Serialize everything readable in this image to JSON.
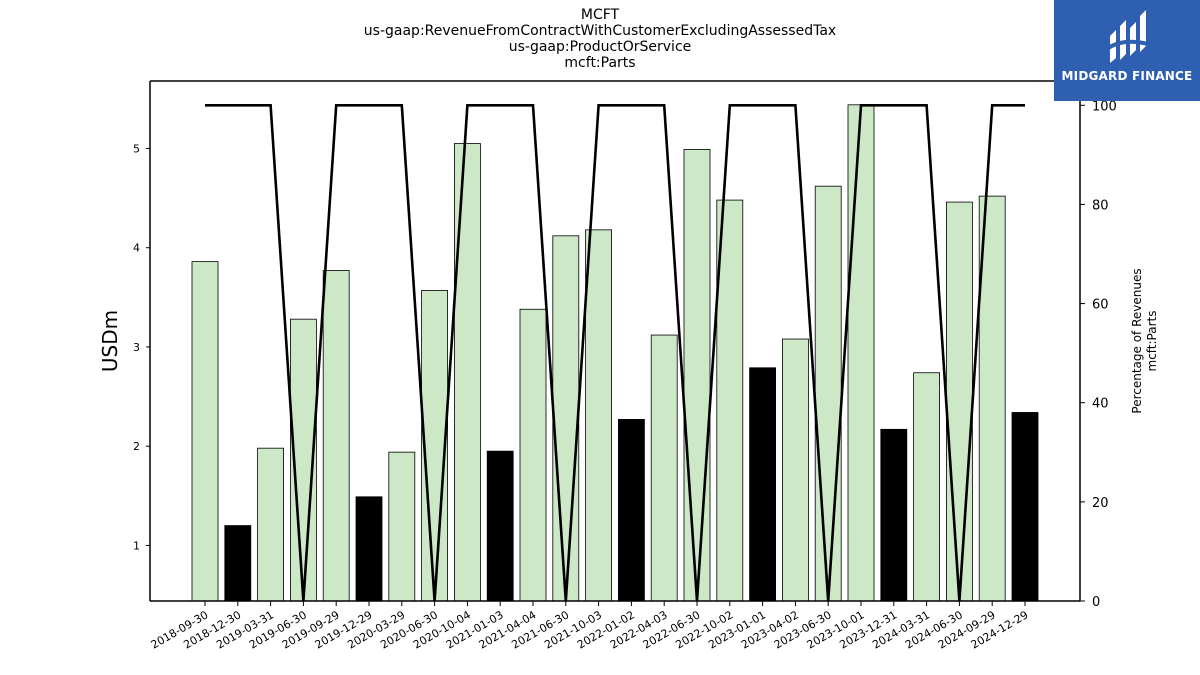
{
  "header": {
    "title_lines": [
      "MCFT",
      "us-gaap:RevenueFromContractWithCustomerExcludingAssessedTax",
      "us-gaap:ProductOrService",
      "mcft:Parts"
    ]
  },
  "logo": {
    "text": "MIDGARD FINANCE",
    "color": "#2f5fb0"
  },
  "chart_data": {
    "type": "bar",
    "title": [
      "MCFT",
      "us-gaap:RevenueFromContractWithCustomerExcludingAssessedTax",
      "us-gaap:ProductOrService",
      "mcft:Parts"
    ],
    "categories": [
      "2018-09-30",
      "2018-12-30",
      "2019-03-31",
      "2019-06-30",
      "2019-09-29",
      "2019-12-29",
      "2020-03-29",
      "2020-06-30",
      "2020-10-04",
      "2021-01-03",
      "2021-04-04",
      "2021-06-30",
      "2021-10-03",
      "2022-01-02",
      "2022-04-03",
      "2022-06-30",
      "2022-10-02",
      "2023-01-01",
      "2023-04-02",
      "2023-06-30",
      "2023-10-01",
      "2023-12-31",
      "2024-03-31",
      "2024-06-30",
      "2024-09-29",
      "2024-12-29"
    ],
    "series": [
      {
        "axis": "left",
        "values": [
          3.86,
          1.2,
          1.98,
          3.28,
          3.77,
          1.49,
          1.94,
          3.57,
          5.05,
          1.95,
          3.38,
          4.12,
          4.18,
          2.27,
          3.12,
          4.99,
          4.48,
          2.79,
          3.08,
          4.62,
          5.44,
          2.17,
          2.74,
          4.46,
          4.52,
          2.34
        ],
        "colors": [
          "#cde8c6",
          "#000000",
          "#cde8c6",
          "#cde8c6",
          "#cde8c6",
          "#000000",
          "#cde8c6",
          "#cde8c6",
          "#cde8c6",
          "#000000",
          "#cde8c6",
          "#cde8c6",
          "#cde8c6",
          "#000000",
          "#cde8c6",
          "#cde8c6",
          "#cde8c6",
          "#000000",
          "#cde8c6",
          "#cde8c6",
          "#cde8c6",
          "#000000",
          "#cde8c6",
          "#cde8c6",
          "#cde8c6",
          "#000000"
        ]
      },
      {
        "axis": "right",
        "type": "line",
        "values": [
          100,
          100,
          100,
          0,
          100,
          100,
          100,
          0,
          100,
          100,
          100,
          0,
          100,
          100,
          100,
          0,
          100,
          100,
          100,
          0,
          100,
          100,
          100,
          0,
          100,
          100
        ],
        "color": "#000000"
      }
    ],
    "ylabel": "USDm",
    "y2label": [
      "Percentage of Revenues",
      "mcft:Parts"
    ],
    "ylim": [
      0.44,
      5.68
    ],
    "y2lim": [
      0,
      104.9
    ],
    "yticks": [
      1,
      2,
      3,
      4,
      5
    ],
    "y2ticks": [
      0,
      20,
      40,
      60,
      80,
      100
    ],
    "grid": false,
    "legend": "none"
  }
}
